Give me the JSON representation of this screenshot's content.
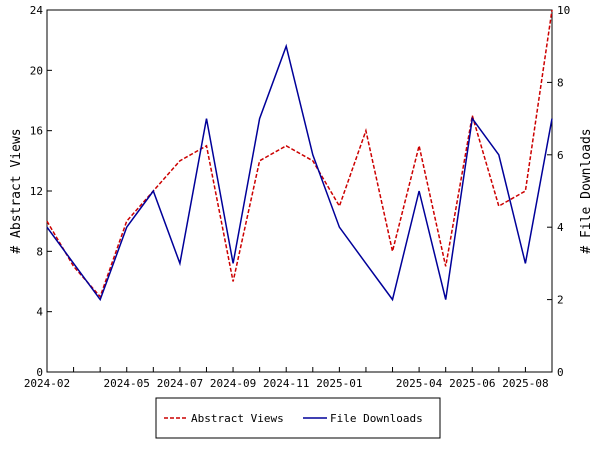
{
  "chart_data": {
    "type": "line",
    "x": [
      "2024-02",
      "2024-03",
      "2024-04",
      "2024-05",
      "2024-06",
      "2024-07",
      "2024-08",
      "2024-09",
      "2024-10",
      "2024-11",
      "2024-12",
      "2025-01",
      "2025-02",
      "2025-03",
      "2025-04",
      "2025-05",
      "2025-06",
      "2025-07",
      "2025-08",
      "2025-09"
    ],
    "x_tick_labels": [
      "2024-02",
      "2024-05",
      "2024-07",
      "2024-09",
      "2024-11",
      "2025-01",
      "2025-04",
      "2025-06",
      "2025-08"
    ],
    "series": [
      {
        "name": "Abstract Views",
        "axis": "left",
        "color": "#cc0000",
        "dash": true,
        "values": [
          10,
          7,
          5,
          10,
          12,
          14,
          15,
          6,
          14,
          15,
          14,
          11,
          16,
          8,
          15,
          7,
          17,
          11,
          12,
          24
        ]
      },
      {
        "name": "File Downloads",
        "axis": "right",
        "color": "#000099",
        "dash": false,
        "values": [
          4,
          3,
          2,
          4,
          5,
          3,
          7,
          3,
          7,
          9,
          6,
          4,
          3,
          2,
          5,
          2,
          7,
          6,
          3,
          7
        ]
      }
    ],
    "ylabel": "# Abstract Views",
    "y2label": "# File Downloads",
    "ylim": [
      0,
      24
    ],
    "y2lim": [
      0,
      10
    ],
    "y_ticks": [
      0,
      4,
      8,
      12,
      16,
      20,
      24
    ],
    "y2_ticks": [
      0,
      2,
      4,
      6,
      8,
      10
    ],
    "grid": false,
    "legend": "bottom-center"
  }
}
